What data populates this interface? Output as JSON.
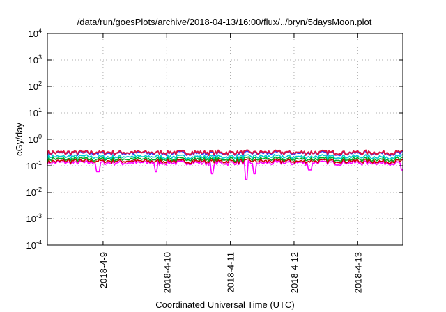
{
  "chart_data": {
    "type": "line",
    "title": "/data/run/goesPlots/archive/2018-04-13/16:00/flux/../bryn/5daysMoon.plot",
    "xlabel": "Coordinated Universal Time (UTC)",
    "ylabel": "cGy/day",
    "yscale": "log",
    "ylim": [
      0.0001,
      10000
    ],
    "y_ticks": [
      {
        "base": "10",
        "exp": "-4"
      },
      {
        "base": "10",
        "exp": "-3"
      },
      {
        "base": "10",
        "exp": "-2"
      },
      {
        "base": "10",
        "exp": "-1"
      },
      {
        "base": "10",
        "exp": "0"
      },
      {
        "base": "10",
        "exp": "1"
      },
      {
        "base": "10",
        "exp": "2"
      },
      {
        "base": "10",
        "exp": "3"
      },
      {
        "base": "10",
        "exp": "4"
      }
    ],
    "xlim": [
      "2018-04-08 03:00",
      "2018-04-13 17:00"
    ],
    "x_ticks": [
      "2018-4-9",
      "2018-4-10",
      "2018-4-11",
      "2018-4-12",
      "2018-4-13"
    ],
    "x_tick_dates": [
      "2018-04-09 00:00",
      "2018-04-10 00:00",
      "2018-04-11 00:00",
      "2018-04-12 00:00",
      "2018-04-13 00:00"
    ],
    "grid": true,
    "legend": "none",
    "series": [
      {
        "color": "#ff00ff",
        "level": 0.13,
        "dips": [
          [
            "2018-04-08 22:00",
            0.06
          ],
          [
            "2018-04-09 20:00",
            0.06
          ],
          [
            "2018-04-10 17:00",
            0.05
          ],
          [
            "2018-04-11 06:00",
            0.03
          ],
          [
            "2018-04-11 09:00",
            0.05
          ],
          [
            "2018-04-12 06:00",
            0.07
          ],
          [
            "2018-04-13 17:00",
            0.07
          ]
        ]
      },
      {
        "color": "#cc0000",
        "level": 0.15
      },
      {
        "color": "#00aa22",
        "level": 0.18
      },
      {
        "color": "#00cccc",
        "level": 0.22
      },
      {
        "color": "#3333ff",
        "level": 0.3
      },
      {
        "color": "#dd1144",
        "level": 0.32
      }
    ]
  }
}
